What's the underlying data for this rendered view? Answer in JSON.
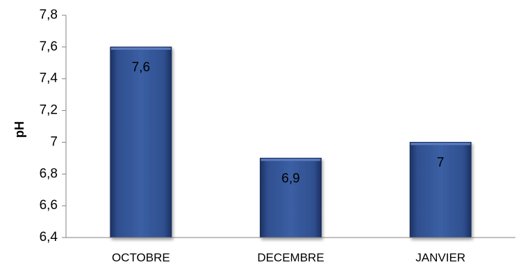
{
  "chart_data": {
    "type": "bar",
    "title": "",
    "xlabel": "",
    "ylabel": "pH",
    "categories": [
      "OCTOBRE",
      "DECEMBRE",
      "JANVIER"
    ],
    "values": [
      7.6,
      6.9,
      7.0
    ],
    "data_labels": [
      "7,6",
      "6,9",
      "7"
    ],
    "ylim": [
      6.4,
      7.8
    ],
    "yticks": [
      6.4,
      6.6,
      6.8,
      7.0,
      7.2,
      7.4,
      7.6,
      7.8
    ],
    "ytick_labels": [
      "6,4",
      "6,6",
      "6,8",
      "7",
      "7,2",
      "7,4",
      "7,6",
      "7,8"
    ],
    "grid": false,
    "legend": "none",
    "bar_color": "#2F4F8F",
    "bar_highlight_color": "#5B7DBF",
    "bar_shadow_color": "#1C3160"
  }
}
